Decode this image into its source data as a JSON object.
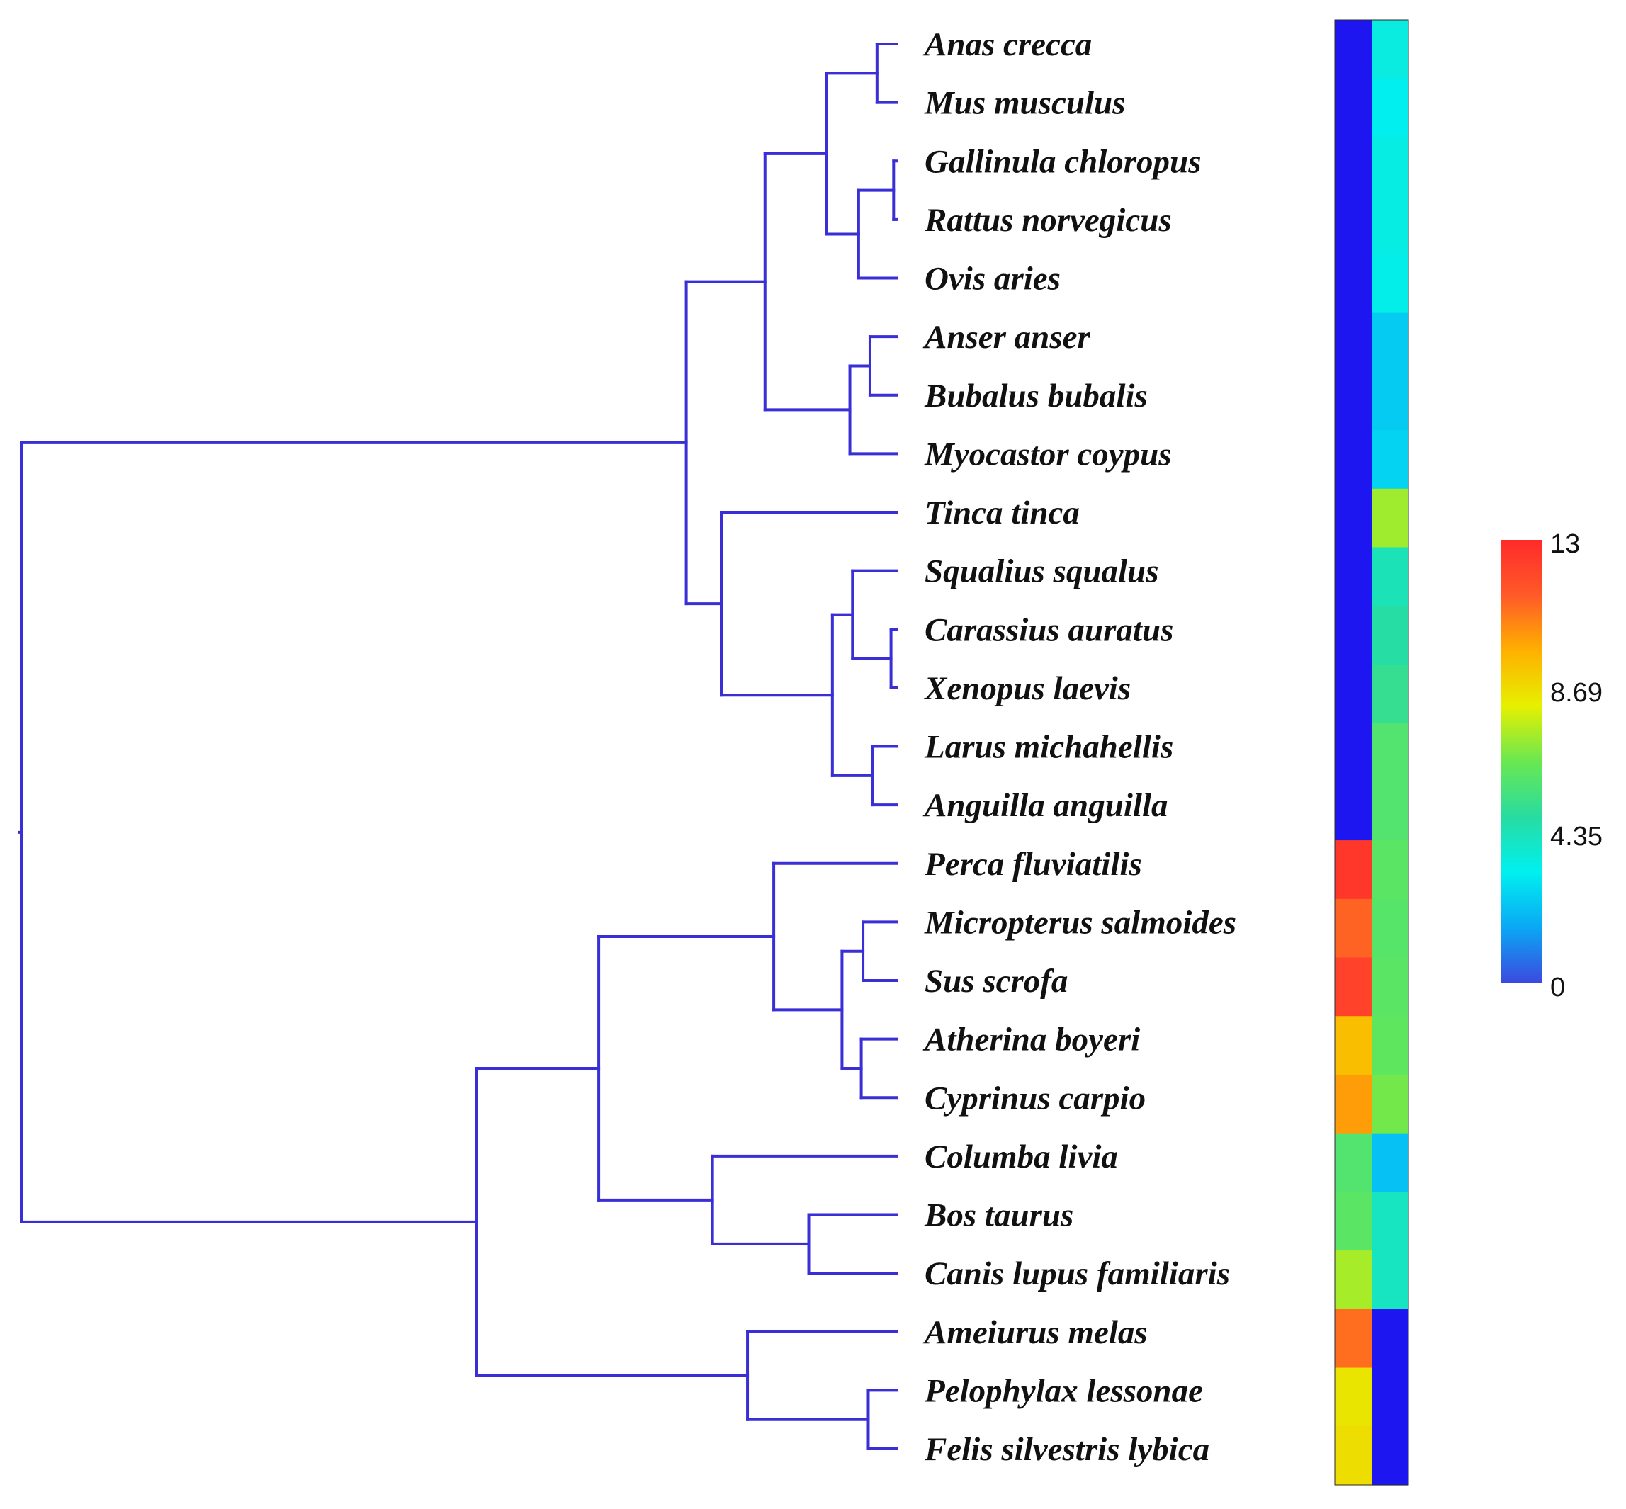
{
  "figure": {
    "type": "dendrogram-heatmap",
    "branch_color": "#3a2fd6"
  },
  "taxa": [
    {
      "name": "Anas crecca",
      "col1": 0,
      "col2": 3.6
    },
    {
      "name": "Mus musculus",
      "col1": 0,
      "col2": 3.3
    },
    {
      "name": "Gallinula chloropus",
      "col1": 0,
      "col2": 3.5
    },
    {
      "name": "Rattus norvegicus",
      "col1": 0,
      "col2": 3.5
    },
    {
      "name": "Ovis aries",
      "col1": 0,
      "col2": 3.4
    },
    {
      "name": "Anser anser",
      "col1": 0,
      "col2": 2.4
    },
    {
      "name": "Bubalus bubalis",
      "col1": 0,
      "col2": 2.4
    },
    {
      "name": "Myocastor coypus",
      "col1": 0,
      "col2": 2.6
    },
    {
      "name": "Tinca tinca",
      "col1": 0,
      "col2": 7.2
    },
    {
      "name": "Squalius squalus",
      "col1": 0,
      "col2": 4.4
    },
    {
      "name": "Carassius auratus",
      "col1": 0,
      "col2": 4.8
    },
    {
      "name": "Xenopus laevis",
      "col1": 0,
      "col2": 5.2
    },
    {
      "name": "Larus michahellis",
      "col1": 0,
      "col2": 5.9
    },
    {
      "name": "Anguilla anguilla",
      "col1": 0,
      "col2": 5.9
    },
    {
      "name": "Perca fluviatilis",
      "col1": 12.6,
      "col2": 6.1
    },
    {
      "name": "Micropterus salmoides",
      "col1": 11.2,
      "col2": 6.0
    },
    {
      "name": "Sus scrofa",
      "col1": 12.2,
      "col2": 6.1
    },
    {
      "name": "Atherina boyeri",
      "col1": 9.4,
      "col2": 6.2
    },
    {
      "name": "Cyprinus carpio",
      "col1": 10.1,
      "col2": 6.6
    },
    {
      "name": "Columba livia",
      "col1": 5.9,
      "col2": 2.2
    },
    {
      "name": "Bos taurus",
      "col1": 6.1,
      "col2": 4.2
    },
    {
      "name": "Canis lupus familiaris",
      "col1": 7.3,
      "col2": 4.2
    },
    {
      "name": "Ameiurus melas",
      "col1": 11.0,
      "col2": 0
    },
    {
      "name": "Pelophylax lessonae",
      "col1": 8.4,
      "col2": 0
    },
    {
      "name": "Felis silvestris lybica",
      "col1": 8.6,
      "col2": 0
    }
  ],
  "tree": {
    "h": 0.0,
    "children": [
      {
        "h": 0.76,
        "children": [
          {
            "h": 0.85,
            "children": [
              {
                "h": 0.92,
                "children": [
                  {
                    "h": 0.978,
                    "children": [
                      {
                        "leaf": 0
                      },
                      {
                        "leaf": 1
                      }
                    ]
                  },
                  {
                    "h": 0.957,
                    "children": [
                      {
                        "h": 0.997,
                        "children": [
                          {
                            "leaf": 2
                          },
                          {
                            "leaf": 3
                          }
                        ]
                      },
                      {
                        "leaf": 4
                      }
                    ]
                  }
                ]
              },
              {
                "h": 0.947,
                "children": [
                  {
                    "h": 0.97,
                    "children": [
                      {
                        "leaf": 5
                      },
                      {
                        "leaf": 6
                      }
                    ]
                  },
                  {
                    "leaf": 7
                  }
                ]
              }
            ]
          },
          {
            "h": 0.8,
            "children": [
              {
                "leaf": 8
              },
              {
                "h": 0.927,
                "children": [
                  {
                    "h": 0.95,
                    "children": [
                      {
                        "leaf": 9
                      },
                      {
                        "h": 0.994,
                        "children": [
                          {
                            "leaf": 10
                          },
                          {
                            "leaf": 11
                          }
                        ]
                      }
                    ]
                  },
                  {
                    "h": 0.973,
                    "children": [
                      {
                        "leaf": 12
                      },
                      {
                        "leaf": 13
                      }
                    ]
                  }
                ]
              }
            ]
          }
        ]
      },
      {
        "h": 0.52,
        "children": [
          {
            "h": 0.66,
            "children": [
              {
                "h": 0.86,
                "children": [
                  {
                    "leaf": 14
                  },
                  {
                    "h": 0.938,
                    "children": [
                      {
                        "h": 0.962,
                        "children": [
                          {
                            "leaf": 15
                          },
                          {
                            "leaf": 16
                          }
                        ]
                      },
                      {
                        "h": 0.96,
                        "children": [
                          {
                            "leaf": 17
                          },
                          {
                            "leaf": 18
                          }
                        ]
                      }
                    ]
                  }
                ]
              },
              {
                "h": 0.79,
                "children": [
                  {
                    "leaf": 19
                  },
                  {
                    "h": 0.9,
                    "children": [
                      {
                        "leaf": 20
                      },
                      {
                        "leaf": 21
                      }
                    ]
                  }
                ]
              }
            ]
          },
          {
            "h": 0.83,
            "children": [
              {
                "leaf": 22
              },
              {
                "h": 0.968,
                "children": [
                  {
                    "leaf": 23
                  },
                  {
                    "leaf": 24
                  }
                ]
              }
            ]
          }
        ]
      }
    ]
  },
  "colorbar": {
    "min": 0,
    "max": 13,
    "ticks": [
      "13",
      "8.69",
      "4.35",
      "0"
    ],
    "tick_values": [
      13,
      8.69,
      4.35,
      0
    ],
    "stops": [
      "#3b4ae0",
      "#0aa8f4",
      "#00f0f0",
      "#28dca0",
      "#6ae850",
      "#e6f000",
      "#ffb000",
      "#ff5a28",
      "#ff2a2a"
    ]
  }
}
